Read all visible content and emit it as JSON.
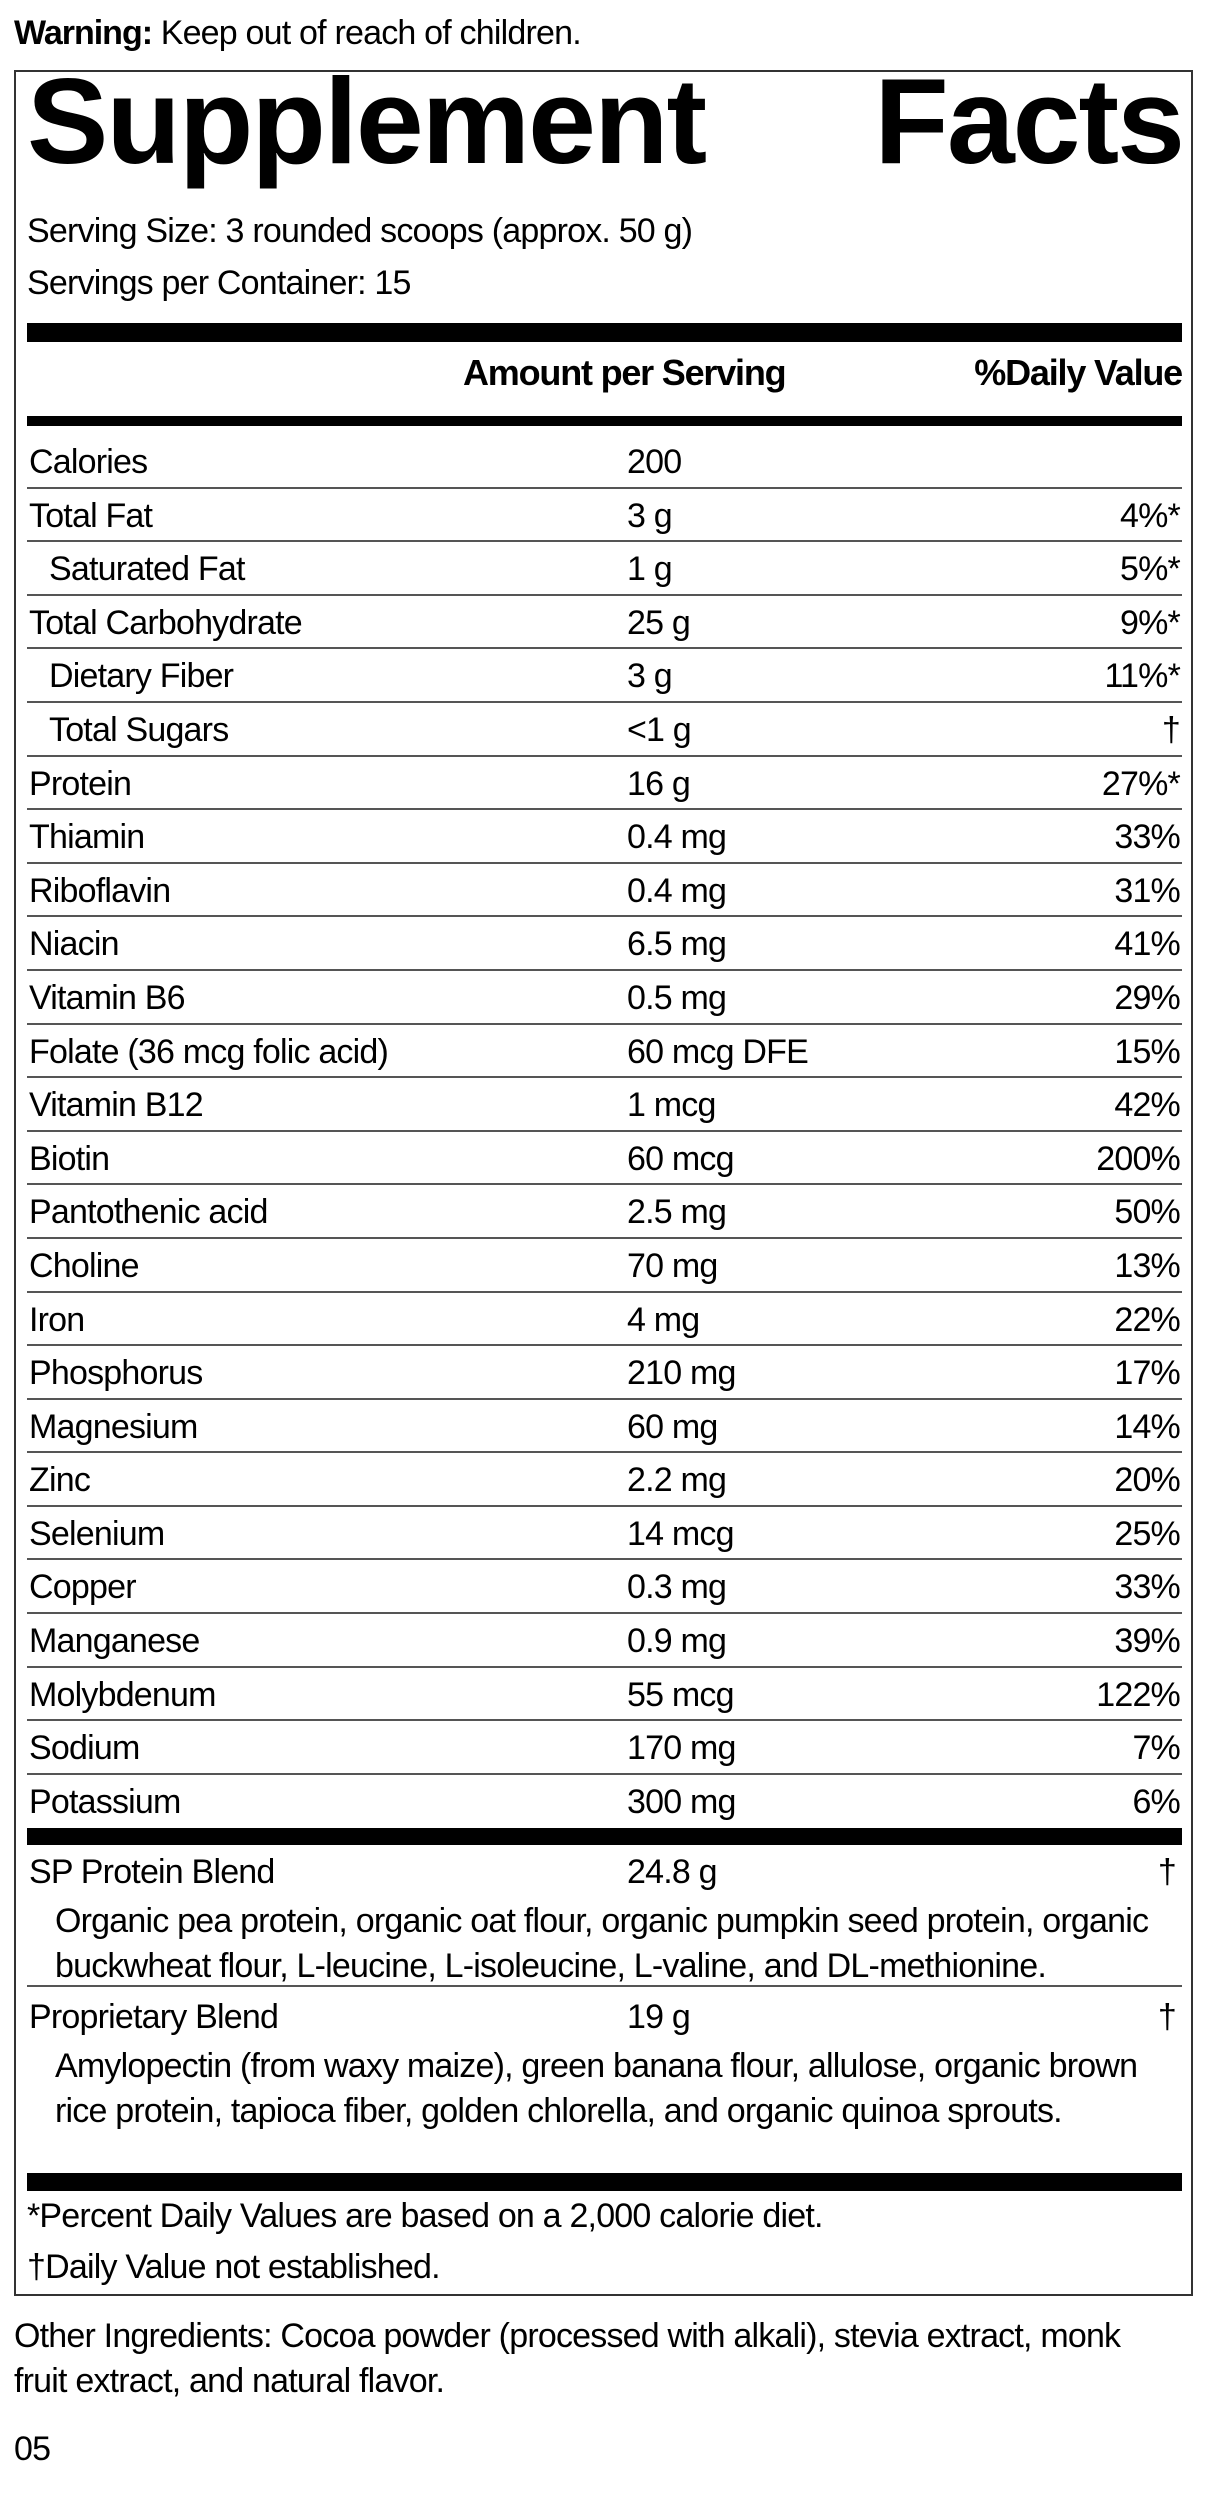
{
  "warning": {
    "label": "Warning:",
    "text": " Keep out of reach of children."
  },
  "panel": {
    "title_left": "Supplement",
    "title_right": "Facts",
    "serving_size": "Serving Size: 3 rounded scoops (approx. 50 g)",
    "servings_per_container": "Servings per Container: 15",
    "header_amount": "Amount per Serving",
    "header_dv": "%Daily Value",
    "rows": [
      {
        "name": "Calories",
        "amount": "200",
        "dv": "",
        "indent": false
      },
      {
        "name": "Total Fat",
        "amount": "3 g",
        "dv": "4%*",
        "indent": false
      },
      {
        "name": "Saturated Fat",
        "amount": "1 g",
        "dv": "5%*",
        "indent": true
      },
      {
        "name": "Total Carbohydrate",
        "amount": "25 g",
        "dv": "9%*",
        "indent": false
      },
      {
        "name": "Dietary Fiber",
        "amount": "3 g",
        "dv": "11%*",
        "indent": true
      },
      {
        "name": "Total Sugars",
        "amount": "<1 g",
        "dv": "†",
        "indent": true
      },
      {
        "name": "Protein",
        "amount": "16 g",
        "dv": "27%*",
        "indent": false
      },
      {
        "name": "Thiamin",
        "amount": "0.4 mg",
        "dv": "33%",
        "indent": false
      },
      {
        "name": "Riboflavin",
        "amount": "0.4 mg",
        "dv": "31%",
        "indent": false
      },
      {
        "name": "Niacin",
        "amount": "6.5 mg",
        "dv": "41%",
        "indent": false
      },
      {
        "name": "Vitamin B6",
        "amount": "0.5 mg",
        "dv": "29%",
        "indent": false
      },
      {
        "name": "Folate (36 mcg folic acid)",
        "amount": "60 mcg DFE",
        "dv": "15%",
        "indent": false
      },
      {
        "name": "Vitamin B12",
        "amount": "1 mcg",
        "dv": "42%",
        "indent": false
      },
      {
        "name": "Biotin",
        "amount": "60 mcg",
        "dv": "200%",
        "indent": false
      },
      {
        "name": "Pantothenic acid",
        "amount": "2.5 mg",
        "dv": "50%",
        "indent": false
      },
      {
        "name": "Choline",
        "amount": "70 mg",
        "dv": "13%",
        "indent": false
      },
      {
        "name": "Iron",
        "amount": "4 mg",
        "dv": "22%",
        "indent": false
      },
      {
        "name": "Phosphorus",
        "amount": "210 mg",
        "dv": "17%",
        "indent": false
      },
      {
        "name": "Magnesium",
        "amount": "60 mg",
        "dv": "14%",
        "indent": false
      },
      {
        "name": "Zinc",
        "amount": "2.2 mg",
        "dv": "20%",
        "indent": false
      },
      {
        "name": "Selenium",
        "amount": "14 mcg",
        "dv": "25%",
        "indent": false
      },
      {
        "name": "Copper",
        "amount": "0.3 mg",
        "dv": "33%",
        "indent": false
      },
      {
        "name": "Manganese",
        "amount": "0.9 mg",
        "dv": "39%",
        "indent": false
      },
      {
        "name": "Molybdenum",
        "amount": "55 mcg",
        "dv": "122%",
        "indent": false
      },
      {
        "name": "Sodium",
        "amount": "170 mg",
        "dv": "7%",
        "indent": false
      },
      {
        "name": "Potassium",
        "amount": "300 mg",
        "dv": "6%",
        "indent": false
      }
    ],
    "blends": [
      {
        "name": "SP Protein Blend",
        "amount": "24.8 g",
        "dv": "†",
        "description": "Organic pea protein, organic oat flour, organic pumpkin seed protein, organic buckwheat flour, L-leucine, L-isoleucine, L-valine, and DL-methionine."
      },
      {
        "name": "Proprietary Blend",
        "amount": "19 g",
        "dv": "†",
        "description": "Amylopectin (from waxy maize), green banana flour, allulose, organic brown rice protein, tapioca fiber, golden chlorella, and organic quinoa sprouts."
      }
    ],
    "footnote_1": "*Percent Daily Values are based on a 2,000 calorie diet.",
    "footnote_2": "†Daily Value not established."
  },
  "other_ingredients": "Other Ingredients: Cocoa powder (processed with alkali), stevia extract, monk fruit extract, and natural flavor.",
  "code": "05"
}
